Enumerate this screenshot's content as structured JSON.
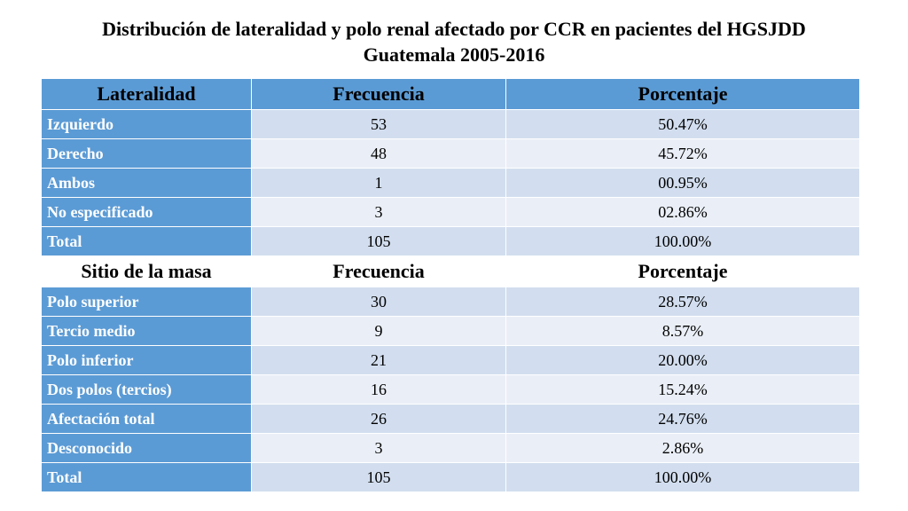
{
  "title_line1": "Distribución de lateralidad y polo renal afectado por CCR en pacientes del HGSJDD",
  "title_line2": "Guatemala 2005-2016",
  "colors": {
    "header_blue": "#5b9bd5",
    "row_light_blue": "#d2deef",
    "row_pale_blue": "#eaeff7",
    "label_text": "#ffffff"
  },
  "section1": {
    "headers": [
      "Lateralidad",
      "Frecuencia",
      "Porcentaje"
    ],
    "rows": [
      {
        "label": "Izquierdo",
        "freq": "53",
        "pct": "50.47%"
      },
      {
        "label": "Derecho",
        "freq": "48",
        "pct": "45.72%"
      },
      {
        "label": "Ambos",
        "freq": "1",
        "pct": "00.95%"
      },
      {
        "label": "No especificado",
        "freq": "3",
        "pct": "02.86%"
      },
      {
        "label": "Total",
        "freq": "105",
        "pct": "100.00%"
      }
    ]
  },
  "section2": {
    "headers": [
      "Sitio de la masa",
      "Frecuencia",
      "Porcentaje"
    ],
    "rows": [
      {
        "label": "Polo superior",
        "freq": "30",
        "pct": "28.57%"
      },
      {
        "label": "Tercio medio",
        "freq": "9",
        "pct": "8.57%"
      },
      {
        "label": "Polo inferior",
        "freq": "21",
        "pct": "20.00%"
      },
      {
        "label": "Dos polos (tercios)",
        "freq": "16",
        "pct": "15.24%"
      },
      {
        "label": "Afectación total",
        "freq": "26",
        "pct": "24.76%"
      },
      {
        "label": "Desconocido",
        "freq": "3",
        "pct": "2.86%"
      },
      {
        "label": "Total",
        "freq": "105",
        "pct": "100.00%"
      }
    ]
  }
}
